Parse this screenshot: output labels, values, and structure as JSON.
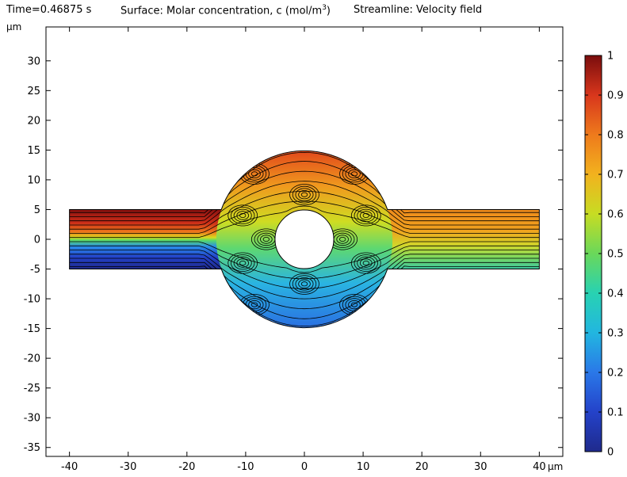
{
  "header": {
    "time_label": "Time=0.46875 s",
    "surface_label": "Surface: Molar concentration, c (mol/m",
    "surface_unit_exp": "3",
    "surface_label_end": ")",
    "streamline_label": "Streamline: Velocity field"
  },
  "chart_data": {
    "type": "heatmap",
    "title": "Surface: Molar concentration, c (mol/m³)  Streamline: Velocity field",
    "xlabel": "µm",
    "ylabel": "µm",
    "xlim": [
      -44,
      44
    ],
    "ylim": [
      -36.5,
      35.7
    ],
    "xticks": [
      -40,
      -30,
      -20,
      -10,
      0,
      10,
      20,
      30,
      40
    ],
    "yticks": [
      -35,
      -30,
      -25,
      -20,
      -15,
      -10,
      -5,
      0,
      5,
      10,
      15,
      20,
      25,
      30
    ],
    "geometry": {
      "channel": {
        "x": [
          -40,
          40
        ],
        "y": [
          -5,
          5
        ]
      },
      "chamber_circle": {
        "center": [
          0,
          0
        ],
        "radius": 15
      },
      "obstacle_circle": {
        "center": [
          0,
          0
        ],
        "radius": 5
      }
    },
    "colorbar": {
      "min": 0,
      "max": 1,
      "ticks": [
        0,
        0.1,
        0.2,
        0.3,
        0.4,
        0.5,
        0.6,
        0.7,
        0.8,
        0.9,
        1
      ],
      "colormap": "rainbow"
    },
    "concentration_samples": [
      {
        "x": -40,
        "y": 4,
        "c": 1.0
      },
      {
        "x": -40,
        "y": 0,
        "c": 0.55
      },
      {
        "x": -40,
        "y": -4,
        "c": 0.05
      },
      {
        "x": 0,
        "y": 12,
        "c": 0.8
      },
      {
        "x": 0,
        "y": -12,
        "c": 0.3
      },
      {
        "x": 35,
        "y": 2,
        "c": 0.72
      },
      {
        "x": 35,
        "y": -3,
        "c": 0.45
      }
    ]
  }
}
